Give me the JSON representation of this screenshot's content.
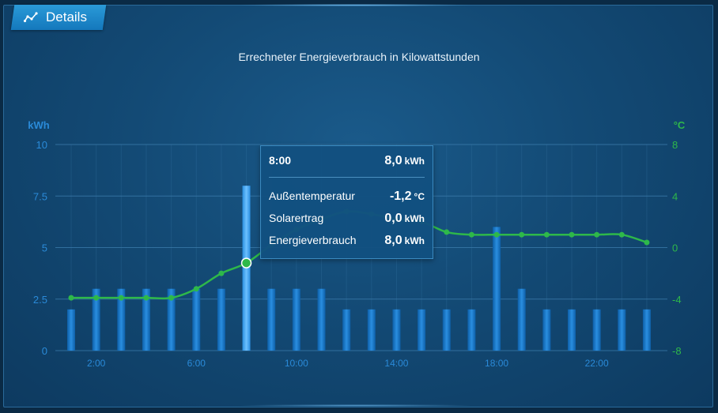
{
  "tab": {
    "label": "Details",
    "icon": "line-chart-icon"
  },
  "chart_title": "Errechneter Energieverbrauch in Kilowattstunden",
  "colors": {
    "bar": "#1a7fd0",
    "bar_highlight": "#3aa0e8",
    "line": "#2eb84a",
    "left_axis": "#2a8ad8",
    "right_axis": "#2eb84a",
    "grid": "#3a7aaa"
  },
  "tooltip": {
    "time": "8:00",
    "value": "8,0",
    "value_unit": "kWh",
    "rows": [
      {
        "label": "Außentemperatur",
        "value": "-1,2",
        "unit": "°C"
      },
      {
        "label": "Solarertrag",
        "value": "0,0",
        "unit": "kWh"
      },
      {
        "label": "Energieverbrauch",
        "value": "8,0",
        "unit": "kWh"
      }
    ]
  },
  "chart_data": {
    "type": "bar",
    "title": "Errechneter Energieverbrauch in Kilowattstunden",
    "y_left_label": "kWh",
    "y_right_label": "°C",
    "y_left_ticks": [
      "10",
      "7.5",
      "5",
      "2.5",
      "0"
    ],
    "y_right_ticks": [
      "8",
      "4",
      "0",
      "-4",
      "-8"
    ],
    "ylim_left": [
      0,
      10
    ],
    "ylim_right": [
      -8,
      8
    ],
    "x_tick_labels": [
      "2:00",
      "6:00",
      "10:00",
      "14:00",
      "18:00",
      "22:00"
    ],
    "hours": [
      1,
      2,
      3,
      4,
      5,
      6,
      7,
      8,
      9,
      10,
      11,
      12,
      13,
      14,
      15,
      16,
      17,
      18,
      19,
      20,
      21,
      22,
      23,
      24
    ],
    "series": [
      {
        "name": "Energieverbrauch",
        "type": "bar",
        "axis": "left",
        "values": [
          2,
          3,
          3,
          3,
          3,
          3,
          3,
          8,
          3,
          3,
          3,
          2,
          2,
          2,
          2,
          2,
          2,
          6,
          3,
          2,
          2,
          2,
          2,
          2
        ]
      },
      {
        "name": "Außentemperatur",
        "type": "line",
        "axis": "right",
        "values": [
          -3.9,
          -3.9,
          -3.9,
          -3.9,
          -3.9,
          -3.2,
          -2.0,
          -1.2,
          0.2,
          1.4,
          2.2,
          2.8,
          2.6,
          2.2,
          2.0,
          1.2,
          1.0,
          1.0,
          1.0,
          1.0,
          1.0,
          1.0,
          1.0,
          0.4
        ]
      }
    ],
    "highlight_hour": 8,
    "grid": true
  }
}
